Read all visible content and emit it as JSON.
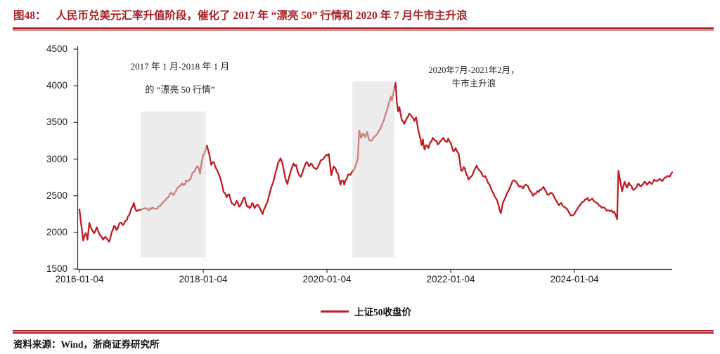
{
  "header": {
    "fig_label": "图48：",
    "title": "人民币兑美元汇率升值阶段，催化了 2017 年 “漂亮 50” 行情和 2020 年 7 月牛市主升浪"
  },
  "annotations": [
    {
      "line1": "2017 年 1 月-2018 年 1 月",
      "line2": "的 “漂亮 50 行情”"
    },
    {
      "line1": "2020年7月-2021年2月，",
      "line2": "牛市主升浪"
    }
  ],
  "legend": {
    "label": "上证50收盘价"
  },
  "footer": {
    "source": "资料来源：Wind，浙商证券研究所"
  },
  "colors": {
    "line": "#bf1d24",
    "line_highlight": "#c9827f",
    "highlight_box": "#ececec",
    "accent_red": "#a81f24",
    "axis": "#333333",
    "text": "#1a1a1a"
  },
  "chart_data": {
    "type": "line",
    "title": "人民币兑美元汇率升值阶段，催化了 2017 年 “漂亮 50” 行情和 2020 年 7 月牛市主升浪",
    "series_name": "上证50收盘价",
    "xlabel": "",
    "ylabel": "",
    "x_unit": "years since 2016-01",
    "grid": false,
    "legend_position": "bottom-center",
    "ylim": [
      1500,
      4500
    ],
    "y_ticks": [
      1500,
      2000,
      2500,
      3000,
      3500,
      4000,
      4500
    ],
    "x_ticks": [
      {
        "t": 0,
        "label": "2016-01-04"
      },
      {
        "t": 2,
        "label": "2018-01-04"
      },
      {
        "t": 4,
        "label": "2020-01-04"
      },
      {
        "t": 6,
        "label": "2022-01-04"
      },
      {
        "t": 8,
        "label": "2024-01-04"
      }
    ],
    "highlight_regions": [
      {
        "t0": 0.99,
        "t1": 2.045,
        "v_bottom": 1660,
        "v_top": 3650,
        "label": "2017年1月-2018年1月 的“漂亮50行情”"
      },
      {
        "t0": 4.41,
        "t1": 5.09,
        "v_bottom": 1660,
        "v_top": 4060,
        "label": "2020年7月-2021年2月，牛市主升浪"
      }
    ],
    "points": [
      [
        0.0,
        2315
      ],
      [
        0.03,
        2100
      ],
      [
        0.06,
        1890
      ],
      [
        0.1,
        1990
      ],
      [
        0.13,
        1900
      ],
      [
        0.16,
        2130
      ],
      [
        0.2,
        2040
      ],
      [
        0.24,
        1990
      ],
      [
        0.28,
        2070
      ],
      [
        0.33,
        1960
      ],
      [
        0.38,
        1900
      ],
      [
        0.42,
        1940
      ],
      [
        0.48,
        1870
      ],
      [
        0.52,
        2000
      ],
      [
        0.56,
        2090
      ],
      [
        0.6,
        2030
      ],
      [
        0.65,
        2130
      ],
      [
        0.7,
        2100
      ],
      [
        0.75,
        2160
      ],
      [
        0.8,
        2230
      ],
      [
        0.84,
        2330
      ],
      [
        0.88,
        2400
      ],
      [
        0.92,
        2290
      ],
      [
        0.96,
        2310
      ],
      [
        1.0,
        2310
      ],
      [
        1.06,
        2330
      ],
      [
        1.12,
        2300
      ],
      [
        1.18,
        2340
      ],
      [
        1.24,
        2320
      ],
      [
        1.3,
        2360
      ],
      [
        1.36,
        2420
      ],
      [
        1.42,
        2470
      ],
      [
        1.48,
        2540
      ],
      [
        1.52,
        2510
      ],
      [
        1.58,
        2600
      ],
      [
        1.64,
        2650
      ],
      [
        1.69,
        2660
      ],
      [
        1.74,
        2700
      ],
      [
        1.78,
        2720
      ],
      [
        1.82,
        2800
      ],
      [
        1.86,
        2830
      ],
      [
        1.9,
        2900
      ],
      [
        1.93,
        2870
      ],
      [
        1.95,
        2800
      ],
      [
        1.98,
        2980
      ],
      [
        2.02,
        3080
      ],
      [
        2.06,
        3185
      ],
      [
        2.1,
        3060
      ],
      [
        2.13,
        2920
      ],
      [
        2.17,
        2960
      ],
      [
        2.21,
        2870
      ],
      [
        2.25,
        2800
      ],
      [
        2.29,
        2700
      ],
      [
        2.33,
        2550
      ],
      [
        2.38,
        2480
      ],
      [
        2.42,
        2520
      ],
      [
        2.46,
        2400
      ],
      [
        2.5,
        2370
      ],
      [
        2.54,
        2430
      ],
      [
        2.58,
        2350
      ],
      [
        2.63,
        2420
      ],
      [
        2.67,
        2480
      ],
      [
        2.71,
        2350
      ],
      [
        2.75,
        2330
      ],
      [
        2.79,
        2400
      ],
      [
        2.83,
        2330
      ],
      [
        2.88,
        2380
      ],
      [
        2.92,
        2320
      ],
      [
        2.96,
        2250
      ],
      [
        3.0,
        2340
      ],
      [
        3.04,
        2420
      ],
      [
        3.08,
        2550
      ],
      [
        3.13,
        2680
      ],
      [
        3.17,
        2820
      ],
      [
        3.21,
        2950
      ],
      [
        3.25,
        3010
      ],
      [
        3.29,
        2900
      ],
      [
        3.33,
        2730
      ],
      [
        3.36,
        2660
      ],
      [
        3.42,
        2850
      ],
      [
        3.46,
        2940
      ],
      [
        3.5,
        2920
      ],
      [
        3.54,
        2800
      ],
      [
        3.58,
        2760
      ],
      [
        3.63,
        2880
      ],
      [
        3.67,
        2960
      ],
      [
        3.71,
        2900
      ],
      [
        3.75,
        2940
      ],
      [
        3.79,
        2880
      ],
      [
        3.83,
        2860
      ],
      [
        3.88,
        2940
      ],
      [
        3.92,
        2990
      ],
      [
        3.96,
        3030
      ],
      [
        4.0,
        3060
      ],
      [
        4.03,
        3070
      ],
      [
        4.07,
        2780
      ],
      [
        4.11,
        2900
      ],
      [
        4.14,
        2870
      ],
      [
        4.18,
        2800
      ],
      [
        4.22,
        2650
      ],
      [
        4.25,
        2710
      ],
      [
        4.28,
        2650
      ],
      [
        4.32,
        2730
      ],
      [
        4.36,
        2790
      ],
      [
        4.4,
        2820
      ],
      [
        4.44,
        2860
      ],
      [
        4.48,
        2950
      ],
      [
        4.5,
        3010
      ],
      [
        4.52,
        3390
      ],
      [
        4.55,
        3290
      ],
      [
        4.58,
        3350
      ],
      [
        4.62,
        3300
      ],
      [
        4.65,
        3370
      ],
      [
        4.68,
        3260
      ],
      [
        4.72,
        3250
      ],
      [
        4.76,
        3300
      ],
      [
        4.8,
        3330
      ],
      [
        4.84,
        3390
      ],
      [
        4.88,
        3450
      ],
      [
        4.92,
        3530
      ],
      [
        4.96,
        3640
      ],
      [
        5.0,
        3760
      ],
      [
        5.03,
        3850
      ],
      [
        5.05,
        3800
      ],
      [
        5.08,
        3920
      ],
      [
        5.11,
        4040
      ],
      [
        5.13,
        3770
      ],
      [
        5.15,
        3650
      ],
      [
        5.17,
        3710
      ],
      [
        5.21,
        3530
      ],
      [
        5.25,
        3480
      ],
      [
        5.29,
        3550
      ],
      [
        5.33,
        3620
      ],
      [
        5.38,
        3570
      ],
      [
        5.41,
        3520
      ],
      [
        5.44,
        3570
      ],
      [
        5.48,
        3380
      ],
      [
        5.51,
        3280
      ],
      [
        5.53,
        3190
      ],
      [
        5.55,
        3270
      ],
      [
        5.58,
        3130
      ],
      [
        5.61,
        3190
      ],
      [
        5.64,
        3150
      ],
      [
        5.67,
        3230
      ],
      [
        5.71,
        3290
      ],
      [
        5.75,
        3250
      ],
      [
        5.79,
        3200
      ],
      [
        5.83,
        3240
      ],
      [
        5.88,
        3290
      ],
      [
        5.92,
        3240
      ],
      [
        5.96,
        3280
      ],
      [
        6.0,
        3220
      ],
      [
        6.04,
        3110
      ],
      [
        6.08,
        3150
      ],
      [
        6.13,
        3070
      ],
      [
        6.17,
        2840
      ],
      [
        6.21,
        2890
      ],
      [
        6.25,
        2800
      ],
      [
        6.29,
        2720
      ],
      [
        6.33,
        2760
      ],
      [
        6.38,
        2850
      ],
      [
        6.42,
        2910
      ],
      [
        6.46,
        2850
      ],
      [
        6.5,
        2810
      ],
      [
        6.54,
        2760
      ],
      [
        6.58,
        2730
      ],
      [
        6.63,
        2650
      ],
      [
        6.67,
        2560
      ],
      [
        6.71,
        2490
      ],
      [
        6.75,
        2440
      ],
      [
        6.79,
        2310
      ],
      [
        6.81,
        2260
      ],
      [
        6.85,
        2420
      ],
      [
        6.89,
        2490
      ],
      [
        6.93,
        2560
      ],
      [
        6.97,
        2640
      ],
      [
        7.0,
        2700
      ],
      [
        7.04,
        2700
      ],
      [
        7.08,
        2660
      ],
      [
        7.13,
        2630
      ],
      [
        7.17,
        2600
      ],
      [
        7.21,
        2650
      ],
      [
        7.25,
        2630
      ],
      [
        7.29,
        2560
      ],
      [
        7.33,
        2500
      ],
      [
        7.38,
        2530
      ],
      [
        7.42,
        2550
      ],
      [
        7.46,
        2580
      ],
      [
        7.5,
        2620
      ],
      [
        7.54,
        2560
      ],
      [
        7.58,
        2510
      ],
      [
        7.63,
        2540
      ],
      [
        7.67,
        2490
      ],
      [
        7.71,
        2430
      ],
      [
        7.75,
        2370
      ],
      [
        7.79,
        2400
      ],
      [
        7.83,
        2350
      ],
      [
        7.88,
        2320
      ],
      [
        7.92,
        2260
      ],
      [
        7.96,
        2230
      ],
      [
        8.0,
        2250
      ],
      [
        8.04,
        2310
      ],
      [
        8.08,
        2360
      ],
      [
        8.13,
        2420
      ],
      [
        8.17,
        2450
      ],
      [
        8.21,
        2470
      ],
      [
        8.25,
        2440
      ],
      [
        8.29,
        2460
      ],
      [
        8.33,
        2420
      ],
      [
        8.38,
        2390
      ],
      [
        8.42,
        2360
      ],
      [
        8.46,
        2340
      ],
      [
        8.5,
        2320
      ],
      [
        8.54,
        2300
      ],
      [
        8.58,
        2290
      ],
      [
        8.62,
        2270
      ],
      [
        8.66,
        2250
      ],
      [
        8.69,
        2180
      ],
      [
        8.71,
        2840
      ],
      [
        8.74,
        2700
      ],
      [
        8.77,
        2560
      ],
      [
        8.81,
        2690
      ],
      [
        8.85,
        2610
      ],
      [
        8.88,
        2680
      ],
      [
        8.92,
        2640
      ],
      [
        8.96,
        2580
      ],
      [
        9.0,
        2610
      ],
      [
        9.04,
        2660
      ],
      [
        9.08,
        2630
      ],
      [
        9.13,
        2690
      ],
      [
        9.17,
        2650
      ],
      [
        9.21,
        2690
      ],
      [
        9.25,
        2660
      ],
      [
        9.29,
        2720
      ],
      [
        9.33,
        2700
      ],
      [
        9.38,
        2730
      ],
      [
        9.42,
        2700
      ],
      [
        9.46,
        2750
      ],
      [
        9.5,
        2770
      ],
      [
        9.54,
        2760
      ],
      [
        9.58,
        2820
      ]
    ]
  }
}
